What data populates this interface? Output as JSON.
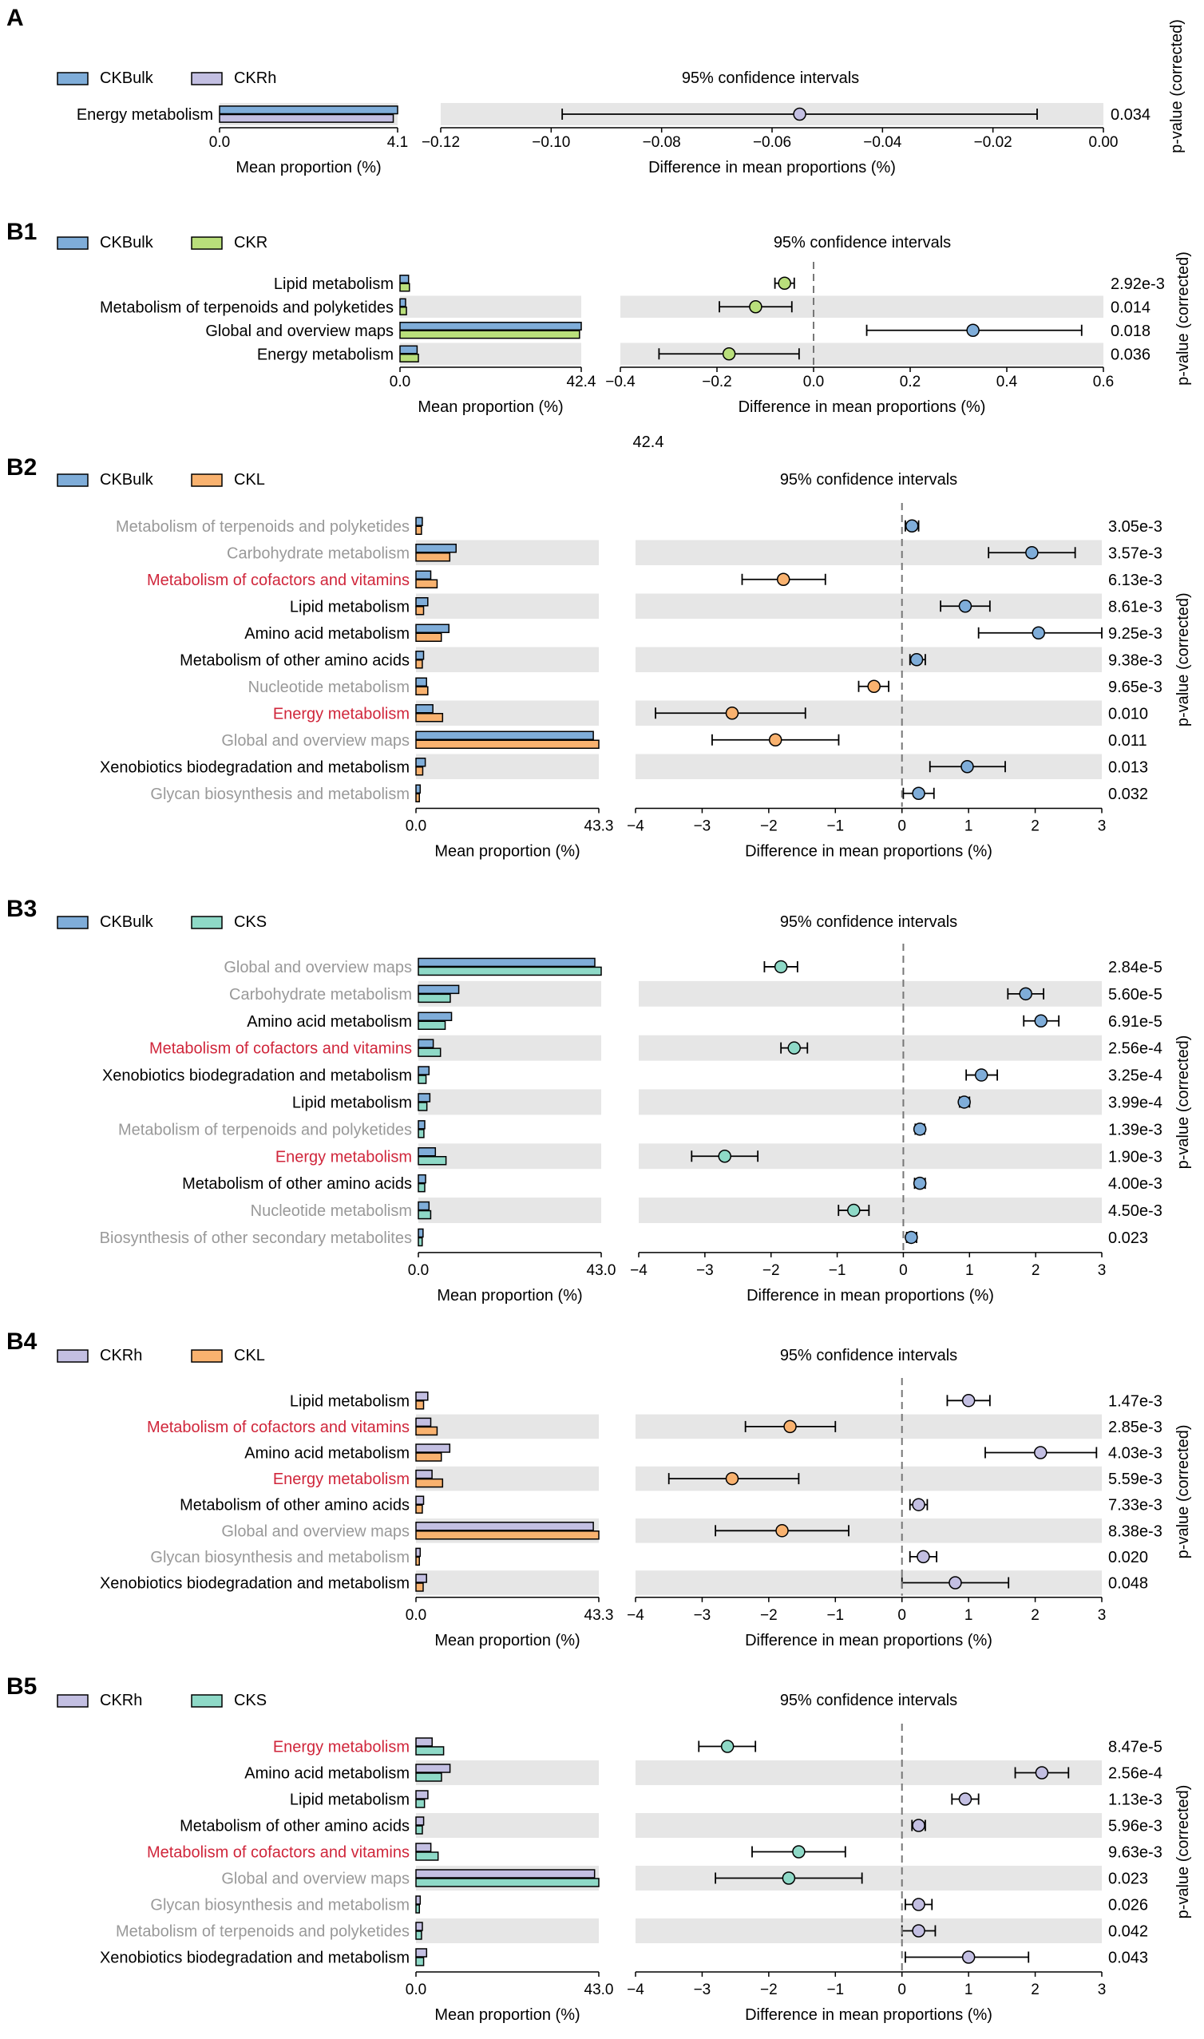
{
  "colors": {
    "CKBulk": "#7fadd9",
    "CKRh": "#c3bfe2",
    "CKR": "#b9df7b",
    "CKL": "#f9b26f",
    "CKS": "#8ed9c7",
    "band": "#e6e6e6",
    "label_default": "#000000",
    "label_gray": "#999999",
    "label_red": "#d0263b"
  },
  "chart_data": [
    {
      "panel": "A",
      "type": "bar",
      "groups": [
        "CKBulk",
        "CKRh"
      ],
      "categories": [
        "Energy metabolism"
      ],
      "label_styles": [
        "black"
      ],
      "series": [
        {
          "name": "CKBulk",
          "values": [
            4.1
          ]
        },
        {
          "name": "CKRh",
          "values": [
            4.0
          ]
        }
      ],
      "bar_max": 4.1,
      "bar_ticks": [
        "0.0",
        "4.1"
      ],
      "bar_xlabel": "Mean proportion (%)",
      "ci_title": "95% confidence intervals",
      "ci_xlabel": "Difference in mean proportions (%)",
      "ci_xlim": [
        -0.12,
        0.0
      ],
      "ci_ticks": [
        "−0.12",
        "−0.10",
        "−0.08",
        "−0.06",
        "−0.04",
        "−0.02",
        "0.00"
      ],
      "ci_tick_values": [
        -0.12,
        -0.1,
        -0.08,
        -0.06,
        -0.04,
        -0.02,
        0.0
      ],
      "differences": [
        -0.055
      ],
      "ci_low": [
        -0.098
      ],
      "ci_high": [
        -0.012
      ],
      "favored": [
        "CKRh"
      ],
      "pvalues": [
        "0.034"
      ],
      "pvalue_label": "p-value (corrected)"
    },
    {
      "panel": "B1",
      "type": "bar",
      "groups": [
        "CKBulk",
        "CKR"
      ],
      "categories": [
        "Lipid metabolism",
        "Metabolism of terpenoids and polyketides",
        "Global and overview maps",
        "Energy metabolism"
      ],
      "label_styles": [
        "black",
        "black",
        "black",
        "black"
      ],
      "series": [
        {
          "name": "CKBulk",
          "values": [
            2.0,
            1.3,
            42.4,
            4.0
          ]
        },
        {
          "name": "CKR",
          "values": [
            2.2,
            1.5,
            42.0,
            4.3
          ]
        }
      ],
      "bar_max": 42.4,
      "bar_ticks": [
        "0.0",
        "42.4"
      ],
      "bar_xlabel": "Mean proportion (%)",
      "ci_title": "95% confidence intervals",
      "ci_xlabel": "Difference in mean proportions (%)",
      "ci_xlim": [
        -0.4,
        0.6
      ],
      "ci_ticks": [
        "−0.4",
        "−0.2",
        "0.0",
        "0.2",
        "0.4",
        "0.6"
      ],
      "ci_tick_values": [
        -0.4,
        -0.2,
        0.0,
        0.2,
        0.4,
        0.6
      ],
      "differences": [
        -0.06,
        -0.12,
        0.33,
        -0.175
      ],
      "ci_low": [
        -0.08,
        -0.195,
        0.11,
        -0.32
      ],
      "ci_high": [
        -0.04,
        -0.045,
        0.555,
        -0.03
      ],
      "favored": [
        "CKR",
        "CKR",
        "CKBulk",
        "CKR"
      ],
      "pvalues": [
        "2.92e-3",
        "0.014",
        "0.018",
        "0.036"
      ],
      "pvalue_label": "p-value (corrected)",
      "note": "42.4"
    },
    {
      "panel": "B2",
      "type": "bar",
      "groups": [
        "CKBulk",
        "CKL"
      ],
      "categories": [
        "Metabolism of terpenoids and polyketides",
        "Carbohydrate metabolism",
        "Metabolism of cofactors and vitamins",
        "Lipid metabolism",
        "Amino acid metabolism",
        "Metabolism of other amino acids",
        "Nucleotide metabolism",
        "Energy metabolism",
        "Global and overview maps",
        "Xenobiotics biodegradation and metabolism",
        "Glycan biosynthesis and metabolism"
      ],
      "label_styles": [
        "gray",
        "gray",
        "red",
        "black",
        "black",
        "black",
        "gray",
        "red",
        "gray",
        "black",
        "gray"
      ],
      "series": [
        {
          "name": "CKBulk",
          "values": [
            1.5,
            9.5,
            3.5,
            2.8,
            7.8,
            1.8,
            2.5,
            4.0,
            42.0,
            2.2,
            1.0
          ]
        },
        {
          "name": "CKL",
          "values": [
            1.3,
            8.0,
            5.0,
            1.8,
            6.0,
            1.5,
            2.8,
            6.3,
            43.3,
            1.6,
            0.8
          ]
        }
      ],
      "bar_max": 43.3,
      "bar_ticks": [
        "0.0",
        "43.3"
      ],
      "bar_xlabel": "Mean proportion (%)",
      "ci_title": "95% confidence intervals",
      "ci_xlabel": "Difference in mean proportions (%)",
      "ci_xlim": [
        -4,
        3
      ],
      "ci_ticks": [
        "−4",
        "−3",
        "−2",
        "−1",
        "0",
        "1",
        "2",
        "3"
      ],
      "ci_tick_values": [
        -4,
        -3,
        -2,
        -1,
        0,
        1,
        2,
        3
      ],
      "differences": [
        0.15,
        1.95,
        -1.78,
        0.95,
        2.05,
        0.22,
        -0.42,
        -2.55,
        -1.9,
        0.98,
        0.25
      ],
      "ci_low": [
        0.05,
        1.3,
        -2.4,
        0.58,
        1.15,
        0.12,
        -0.65,
        -3.7,
        -2.85,
        0.42,
        0.02
      ],
      "ci_high": [
        0.25,
        2.6,
        -1.15,
        1.32,
        3.0,
        0.35,
        -0.2,
        -1.45,
        -0.95,
        1.55,
        0.48
      ],
      "favored": [
        "CKBulk",
        "CKBulk",
        "CKL",
        "CKBulk",
        "CKBulk",
        "CKBulk",
        "CKL",
        "CKL",
        "CKL",
        "CKBulk",
        "CKBulk"
      ],
      "pvalues": [
        "3.05e-3",
        "3.57e-3",
        "6.13e-3",
        "8.61e-3",
        "9.25e-3",
        "9.38e-3",
        "9.65e-3",
        "0.010",
        "0.011",
        "0.013",
        "0.032"
      ],
      "pvalue_label": "p-value (corrected)"
    },
    {
      "panel": "B3",
      "type": "bar",
      "groups": [
        "CKBulk",
        "CKS"
      ],
      "categories": [
        "Global and overview maps",
        "Carbohydrate metabolism",
        "Amino acid metabolism",
        "Metabolism of cofactors and vitamins",
        "Xenobiotics biodegradation and metabolism",
        "Lipid metabolism",
        "Metabolism of terpenoids and polyketides",
        "Energy metabolism",
        "Metabolism of other amino acids",
        "Nucleotide metabolism",
        "Biosynthesis of other secondary metabolites"
      ],
      "label_styles": [
        "gray",
        "gray",
        "black",
        "red",
        "black",
        "black",
        "gray",
        "red",
        "black",
        "gray",
        "gray"
      ],
      "series": [
        {
          "name": "CKBulk",
          "values": [
            41.5,
            9.5,
            7.8,
            3.5,
            2.5,
            2.7,
            1.5,
            4.0,
            1.7,
            2.5,
            1.1
          ]
        },
        {
          "name": "CKS",
          "values": [
            43.0,
            7.5,
            6.3,
            5.2,
            1.8,
            2.0,
            1.3,
            6.5,
            1.5,
            2.9,
            0.9
          ]
        }
      ],
      "bar_max": 43.0,
      "bar_ticks": [
        "0.0",
        "43.0"
      ],
      "bar_xlabel": "Mean proportion (%)",
      "ci_title": "95% confidence intervals",
      "ci_xlabel": "Difference in mean proportions (%)",
      "ci_xlim": [
        -4,
        3
      ],
      "ci_ticks": [
        "−4",
        "−3",
        "−2",
        "−1",
        "0",
        "1",
        "2",
        "3"
      ],
      "ci_tick_values": [
        -4,
        -3,
        -2,
        -1,
        0,
        1,
        2,
        3
      ],
      "differences": [
        -1.85,
        1.85,
        2.08,
        -1.65,
        1.18,
        0.92,
        0.25,
        -2.7,
        0.25,
        -0.75,
        0.12
      ],
      "ci_low": [
        -2.1,
        1.58,
        1.82,
        -1.85,
        0.95,
        0.85,
        0.18,
        -3.2,
        0.17,
        -0.98,
        0.05
      ],
      "ci_high": [
        -1.6,
        2.12,
        2.35,
        -1.45,
        1.42,
        1.0,
        0.32,
        -2.2,
        0.33,
        -0.52,
        0.2
      ],
      "favored": [
        "CKS",
        "CKBulk",
        "CKBulk",
        "CKS",
        "CKBulk",
        "CKBulk",
        "CKBulk",
        "CKS",
        "CKBulk",
        "CKS",
        "CKBulk"
      ],
      "pvalues": [
        "2.84e-5",
        "5.60e-5",
        "6.91e-5",
        "2.56e-4",
        "3.25e-4",
        "3.99e-4",
        "1.39e-3",
        "1.90e-3",
        "4.00e-3",
        "4.50e-3",
        "0.023"
      ],
      "pvalue_label": "p-value (corrected)"
    },
    {
      "panel": "B4",
      "type": "bar",
      "groups": [
        "CKRh",
        "CKL"
      ],
      "categories": [
        "Lipid metabolism",
        "Metabolism of cofactors and vitamins",
        "Amino acid metabolism",
        "Energy metabolism",
        "Metabolism of other amino acids",
        "Global and overview maps",
        "Glycan biosynthesis and metabolism",
        "Xenobiotics biodegradation and metabolism"
      ],
      "label_styles": [
        "black",
        "red",
        "black",
        "red",
        "black",
        "gray",
        "gray",
        "black"
      ],
      "series": [
        {
          "name": "CKRh",
          "values": [
            2.8,
            3.5,
            8.0,
            3.8,
            1.8,
            42.0,
            1.0,
            2.5
          ]
        },
        {
          "name": "CKL",
          "values": [
            1.8,
            5.0,
            6.0,
            6.3,
            1.5,
            43.3,
            0.8,
            1.7
          ]
        }
      ],
      "bar_max": 43.3,
      "bar_ticks": [
        "0.0",
        "43.3"
      ],
      "bar_xlabel": "Mean proportion (%)",
      "ci_title": "95% confidence intervals",
      "ci_xlabel": "Difference in mean proportions (%)",
      "ci_xlim": [
        -4,
        3
      ],
      "ci_ticks": [
        "−4",
        "−3",
        "−2",
        "−1",
        "0",
        "1",
        "2",
        "3"
      ],
      "ci_tick_values": [
        -4,
        -3,
        -2,
        -1,
        0,
        1,
        2,
        3
      ],
      "differences": [
        1.0,
        -1.68,
        2.08,
        -2.55,
        0.25,
        -1.8,
        0.32,
        0.8
      ],
      "ci_low": [
        0.68,
        -2.35,
        1.25,
        -3.5,
        0.12,
        -2.8,
        0.12,
        0.0
      ],
      "ci_high": [
        1.32,
        -1.0,
        2.92,
        -1.55,
        0.38,
        -0.8,
        0.52,
        1.6
      ],
      "favored": [
        "CKRh",
        "CKL",
        "CKRh",
        "CKL",
        "CKRh",
        "CKL",
        "CKRh",
        "CKRh"
      ],
      "pvalues": [
        "1.47e-3",
        "2.85e-3",
        "4.03e-3",
        "5.59e-3",
        "7.33e-3",
        "8.38e-3",
        "0.020",
        "0.048"
      ],
      "pvalue_label": "p-value (corrected)"
    },
    {
      "panel": "B5",
      "type": "bar",
      "groups": [
        "CKRh",
        "CKS"
      ],
      "categories": [
        "Energy metabolism",
        "Amino acid metabolism",
        "Lipid metabolism",
        "Metabolism of other amino acids",
        "Metabolism of cofactors and vitamins",
        "Global and overview maps",
        "Glycan biosynthesis and metabolism",
        "Metabolism of terpenoids and polyketides",
        "Xenobiotics biodegradation and metabolism"
      ],
      "label_styles": [
        "red",
        "black",
        "black",
        "black",
        "red",
        "gray",
        "gray",
        "gray",
        "black"
      ],
      "series": [
        {
          "name": "CKRh",
          "values": [
            3.8,
            8.0,
            2.8,
            1.8,
            3.5,
            42.0,
            1.0,
            1.5,
            2.5
          ]
        },
        {
          "name": "CKS",
          "values": [
            6.5,
            6.0,
            2.0,
            1.5,
            5.2,
            43.0,
            0.8,
            1.3,
            1.8
          ]
        }
      ],
      "bar_max": 43.0,
      "bar_ticks": [
        "0.0",
        "43.0"
      ],
      "bar_xlabel": "Mean proportion (%)",
      "ci_title": "95% confidence intervals",
      "ci_xlabel": "Difference in mean proportions (%)",
      "ci_xlim": [
        -4,
        3
      ],
      "ci_ticks": [
        "−4",
        "−3",
        "−2",
        "−1",
        "0",
        "1",
        "2",
        "3"
      ],
      "ci_tick_values": [
        -4,
        -3,
        -2,
        -1,
        0,
        1,
        2,
        3
      ],
      "differences": [
        -2.62,
        2.1,
        0.95,
        0.25,
        -1.55,
        -1.7,
        0.25,
        0.25,
        1.0
      ],
      "ci_low": [
        -3.05,
        1.7,
        0.75,
        0.15,
        -2.25,
        -2.8,
        0.05,
        0.0,
        0.05
      ],
      "ci_high": [
        -2.2,
        2.5,
        1.15,
        0.35,
        -0.85,
        -0.6,
        0.45,
        0.5,
        1.9
      ],
      "favored": [
        "CKS",
        "CKRh",
        "CKRh",
        "CKRh",
        "CKS",
        "CKS",
        "CKRh",
        "CKRh",
        "CKRh"
      ],
      "pvalues": [
        "8.47e-5",
        "2.56e-4",
        "1.13e-3",
        "5.96e-3",
        "9.63e-3",
        "0.023",
        "0.026",
        "0.042",
        "0.043"
      ],
      "pvalue_label": "p-value (corrected)"
    }
  ]
}
